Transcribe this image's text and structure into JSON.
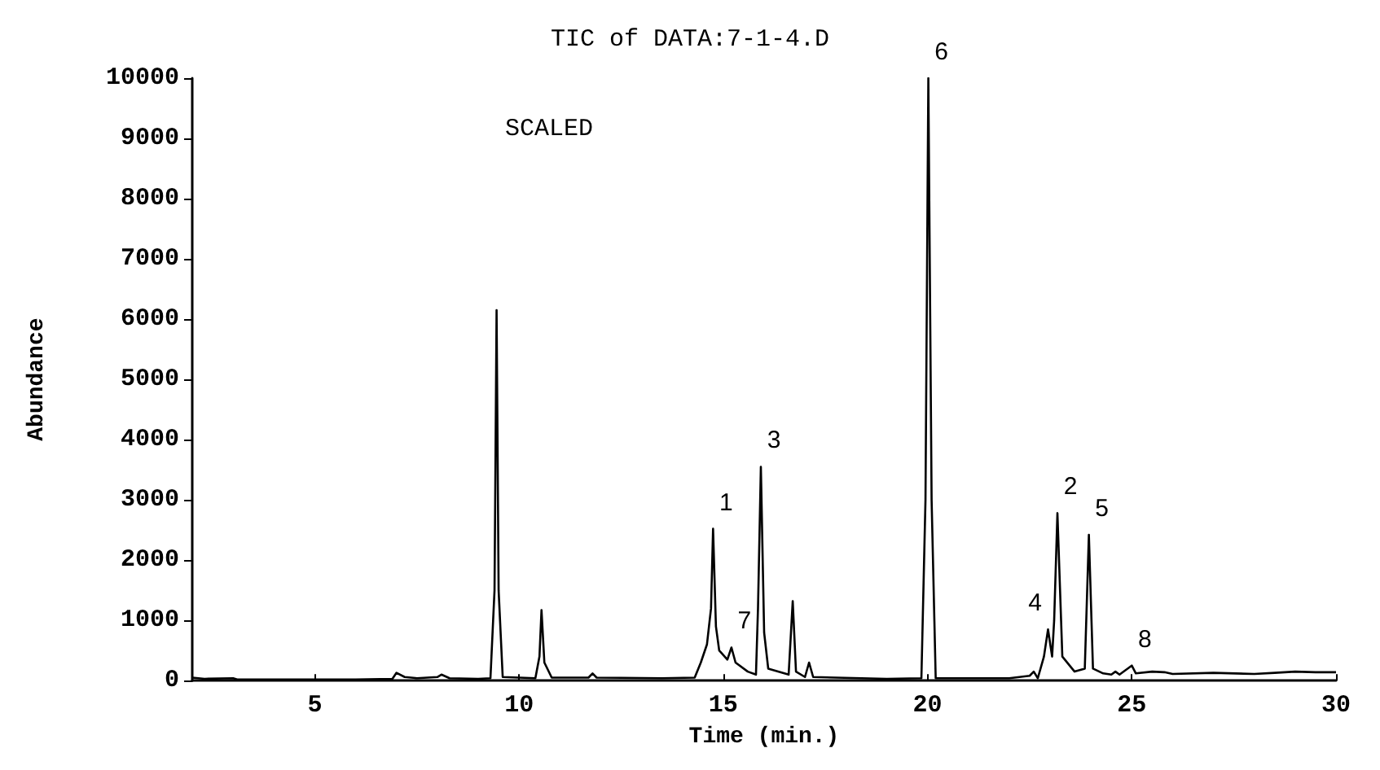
{
  "chart_data": {
    "type": "line",
    "title": "TIC of DATA:7-1-4.D",
    "xlabel": "Time (min.)",
    "ylabel": "Abundance",
    "xlim": [
      2,
      30
    ],
    "xticks": [
      5,
      10,
      15,
      20,
      25,
      30
    ],
    "ylim": [
      0,
      10000
    ],
    "yticks": [
      0,
      1000,
      2000,
      3000,
      4000,
      5000,
      6000,
      7000,
      8000,
      9000,
      10000
    ],
    "grid": false,
    "marker": "none",
    "line_style": "solid",
    "x": [
      2.0,
      2.3,
      3.0,
      3.1,
      4,
      5,
      6,
      6.9,
      7.0,
      7.2,
      7.5,
      8.0,
      8.1,
      8.3,
      9.0,
      9.3,
      9.4,
      9.45,
      9.5,
      9.6,
      10.4,
      10.5,
      10.55,
      10.62,
      10.8,
      11.7,
      11.8,
      11.9,
      13.5,
      14.3,
      14.45,
      14.6,
      14.7,
      14.75,
      14.82,
      14.9,
      15.1,
      15.2,
      15.3,
      15.6,
      15.8,
      15.85,
      15.92,
      16.0,
      16.1,
      16.6,
      16.7,
      16.78,
      17.0,
      17.1,
      17.2,
      19.0,
      19.85,
      19.95,
      20.02,
      20.1,
      20.2,
      22.0,
      22.5,
      22.6,
      22.7,
      22.85,
      22.95,
      23.05,
      23.1,
      23.18,
      23.3,
      23.6,
      23.85,
      23.95,
      24.05,
      24.3,
      24.5,
      24.6,
      24.7,
      25.0,
      25.1,
      25.5,
      25.8,
      26,
      27,
      28,
      28.5,
      29,
      29.5,
      30
    ],
    "series": [
      {
        "color": "#000000",
        "values": [
          50,
          30,
          40,
          20,
          20,
          20,
          20,
          30,
          130,
          60,
          40,
          60,
          100,
          40,
          30,
          40,
          1500,
          6150,
          1500,
          60,
          40,
          400,
          1170,
          300,
          50,
          50,
          120,
          50,
          40,
          50,
          300,
          600,
          1200,
          2520,
          900,
          500,
          350,
          550,
          300,
          150,
          100,
          1200,
          3550,
          800,
          200,
          100,
          1320,
          150,
          60,
          300,
          60,
          30,
          40,
          3000,
          10000,
          3000,
          40,
          40,
          80,
          150,
          40,
          400,
          850,
          400,
          1000,
          2780,
          400,
          150,
          200,
          2420,
          200,
          120,
          100,
          150,
          100,
          250,
          120,
          150,
          140,
          110,
          130,
          110,
          130,
          150,
          140,
          140
        ]
      }
    ],
    "annotations": [
      "SCALED",
      {
        "text": "1",
        "x": 14.75,
        "y": 2520
      },
      {
        "text": "7",
        "x": 15.2,
        "y": 550
      },
      {
        "text": "3",
        "x": 15.92,
        "y": 3550
      },
      {
        "text": "6",
        "x": 20.02,
        "y": 10000
      },
      {
        "text": "4",
        "x": 22.95,
        "y": 850
      },
      {
        "text": "2",
        "x": 23.18,
        "y": 2780
      },
      {
        "text": "5",
        "x": 23.95,
        "y": 2420
      },
      {
        "text": "8",
        "x": 25.0,
        "y": 250
      }
    ]
  }
}
